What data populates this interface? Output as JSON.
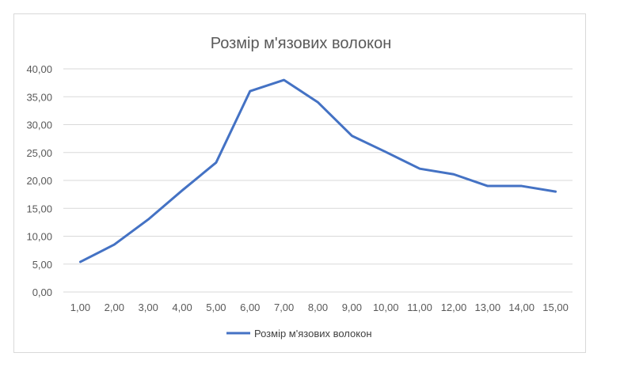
{
  "chart_data": {
    "type": "line",
    "title": "Розмір м'язових волокон",
    "xlabel": "",
    "ylabel": "",
    "categories": [
      "1,00",
      "2,00",
      "3,00",
      "4,00",
      "5,00",
      "6,00",
      "7,00",
      "8,00",
      "9,00",
      "10,00",
      "11,00",
      "12,00",
      "13,00",
      "14,00",
      "15,00"
    ],
    "series": [
      {
        "name": "Розмір м'язових волокон",
        "color": "#4472c4",
        "values": [
          5.4,
          8.5,
          13,
          18.2,
          23.2,
          36,
          38,
          34,
          28,
          25.1,
          22.1,
          21.1,
          19,
          19,
          18
        ]
      }
    ],
    "ylim": [
      0,
      40
    ],
    "yticks": [
      "0,00",
      "5,00",
      "10,00",
      "15,00",
      "20,00",
      "25,00",
      "30,00",
      "35,00",
      "40,00"
    ],
    "grid": true,
    "legend_position": "bottom"
  }
}
